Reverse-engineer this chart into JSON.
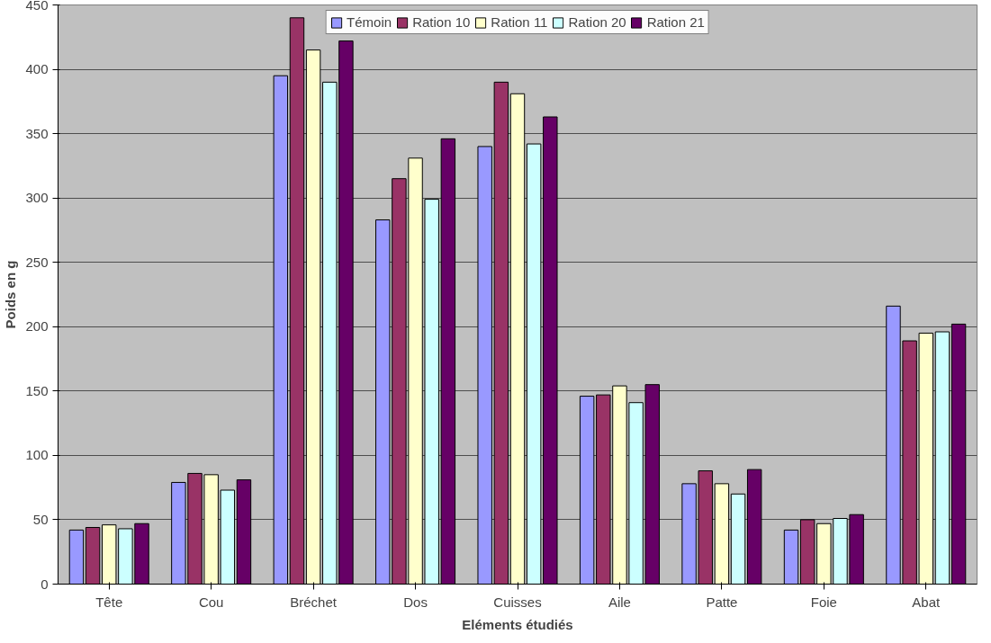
{
  "chart_data": {
    "type": "bar",
    "xlabel": "Eléments étudiés",
    "ylabel": "Poids en g",
    "categories": [
      "Tête",
      "Cou",
      "Bréchet",
      "Dos",
      "Cuisses",
      "Aile",
      "Patte",
      "Foie",
      "Abat"
    ],
    "series": [
      {
        "name": "Témoin",
        "color": "#9999ff",
        "values": [
          42,
          79,
          395,
          283,
          340,
          146,
          78,
          42,
          216
        ]
      },
      {
        "name": "Ration 10",
        "color": "#993366",
        "values": [
          44,
          86,
          440,
          315,
          390,
          147,
          88,
          50,
          189
        ]
      },
      {
        "name": "Ration 11",
        "color": "#ffffcc",
        "values": [
          46,
          85,
          415,
          331,
          381,
          154,
          78,
          47,
          195
        ]
      },
      {
        "name": "Ration 20",
        "color": "#ccffff",
        "values": [
          43,
          73,
          390,
          299,
          342,
          141,
          70,
          51,
          196
        ]
      },
      {
        "name": "Ration 21",
        "color": "#660066",
        "values": [
          47,
          81,
          422,
          346,
          363,
          155,
          89,
          54,
          202
        ]
      }
    ],
    "ylim": [
      0,
      450
    ],
    "yticks": [
      0,
      50,
      100,
      150,
      200,
      250,
      300,
      350,
      400,
      450
    ],
    "grid": "y",
    "legend": "top"
  }
}
